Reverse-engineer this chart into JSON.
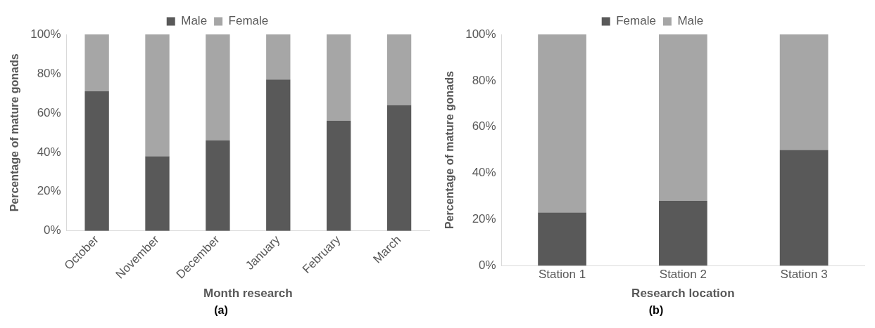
{
  "chart_data": [
    {
      "type": "bar",
      "stacked": true,
      "xlabel": "Month research",
      "ylabel": "Percentage of mature gonads",
      "categories": [
        "October",
        "November",
        "December",
        "January",
        "February",
        "March"
      ],
      "series": [
        {
          "name": "Male",
          "color": "#595959",
          "values": [
            71,
            38,
            46,
            77,
            56,
            64
          ]
        },
        {
          "name": "Female",
          "color": "#a6a6a6",
          "values": [
            29,
            62,
            54,
            23,
            44,
            36
          ]
        }
      ],
      "ylim": [
        0,
        100
      ],
      "yticks": [
        {
          "value": 0,
          "label": "0%"
        },
        {
          "value": 20,
          "label": "20%"
        },
        {
          "value": 40,
          "label": "40%"
        },
        {
          "value": 60,
          "label": "60%"
        },
        {
          "value": 80,
          "label": "80%"
        },
        {
          "value": 100,
          "label": "100%"
        }
      ],
      "grid": false,
      "legend": "top",
      "annotations": [
        "(a)"
      ]
    },
    {
      "type": "bar",
      "stacked": true,
      "xlabel": "Research location",
      "ylabel": "Percentage of mature gonads",
      "categories": [
        "Station 1",
        "Station 2",
        "Station 3"
      ],
      "series": [
        {
          "name": "Female",
          "color": "#595959",
          "values": [
            23,
            28,
            50
          ]
        },
        {
          "name": "Male",
          "color": "#a6a6a6",
          "values": [
            77,
            72,
            50
          ]
        }
      ],
      "ylim": [
        0,
        100
      ],
      "yticks": [
        {
          "value": 0,
          "label": "0%"
        },
        {
          "value": 20,
          "label": "20%"
        },
        {
          "value": 40,
          "label": "40%"
        },
        {
          "value": 60,
          "label": "60%"
        },
        {
          "value": 80,
          "label": "80%"
        },
        {
          "value": 100,
          "label": "100%"
        }
      ],
      "grid": false,
      "legend": "top",
      "annotations": [
        "(b)"
      ]
    }
  ]
}
